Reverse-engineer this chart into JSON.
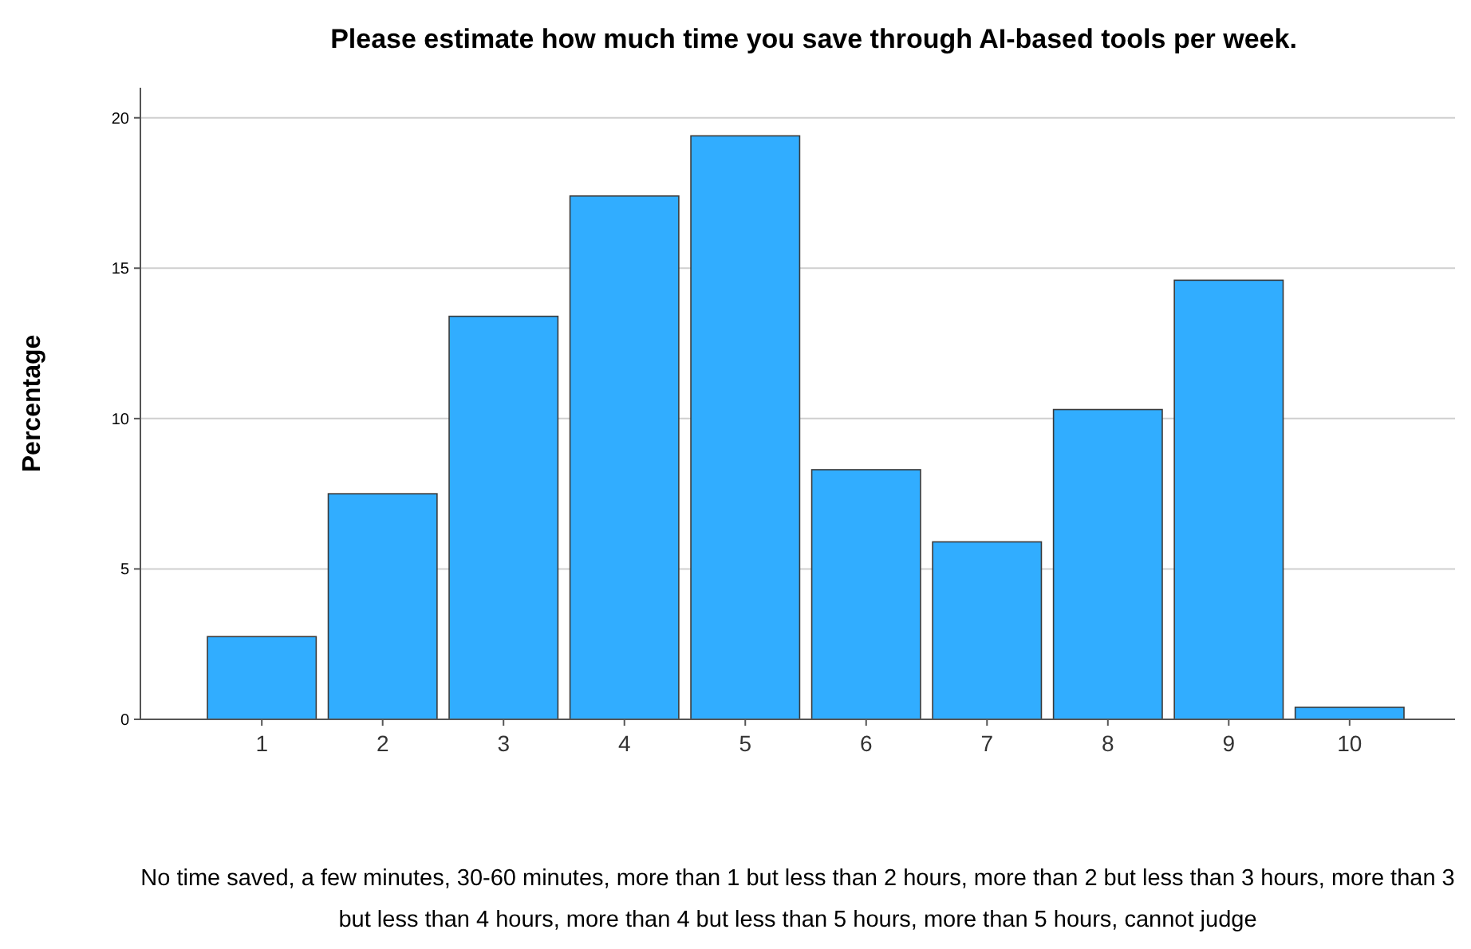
{
  "chart_data": {
    "type": "bar",
    "title": "Please estimate how much time you save through AI-based tools per week.",
    "ylabel": "Percentage",
    "xlabel": "No time saved, a few minutes, 30-60 minutes, more than 1 but less than 2 hours, more than 2 but less than 3 hours, more than 3 but less than 4 hours, more than 4 but less than 5 hours, more than 5 hours, cannot judge",
    "categories": [
      "1",
      "2",
      "3",
      "4",
      "5",
      "6",
      "7",
      "8",
      "9",
      "10"
    ],
    "values": [
      2.75,
      7.5,
      13.4,
      17.4,
      19.4,
      8.3,
      5.9,
      10.3,
      14.6,
      0.4
    ],
    "color": "#31adff",
    "ylim": [
      0,
      21
    ],
    "yticks": [
      0,
      5,
      10,
      15,
      20
    ],
    "grid": "y"
  }
}
